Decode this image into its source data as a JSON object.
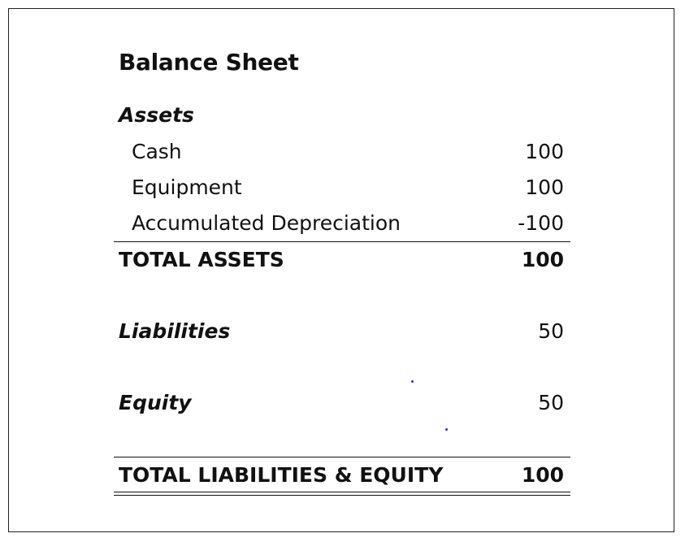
{
  "balance_sheet": {
    "title": "Balance Sheet",
    "assets": {
      "heading": "Assets",
      "items": [
        {
          "label": "Cash",
          "value": "100"
        },
        {
          "label": "Equipment",
          "value": "100"
        },
        {
          "label": "Accumulated Depreciation",
          "value": "-100"
        }
      ],
      "total_label": "TOTAL ASSETS",
      "total_value": "100"
    },
    "liabilities": {
      "heading": "Liabilities",
      "value": "50"
    },
    "equity": {
      "heading": "Equity",
      "value": "50"
    },
    "grand_total": {
      "label": "TOTAL LIABILITIES & EQUITY",
      "value": "100"
    }
  },
  "colors": {
    "text": "#111111",
    "stray_dots": "#2233cc"
  }
}
